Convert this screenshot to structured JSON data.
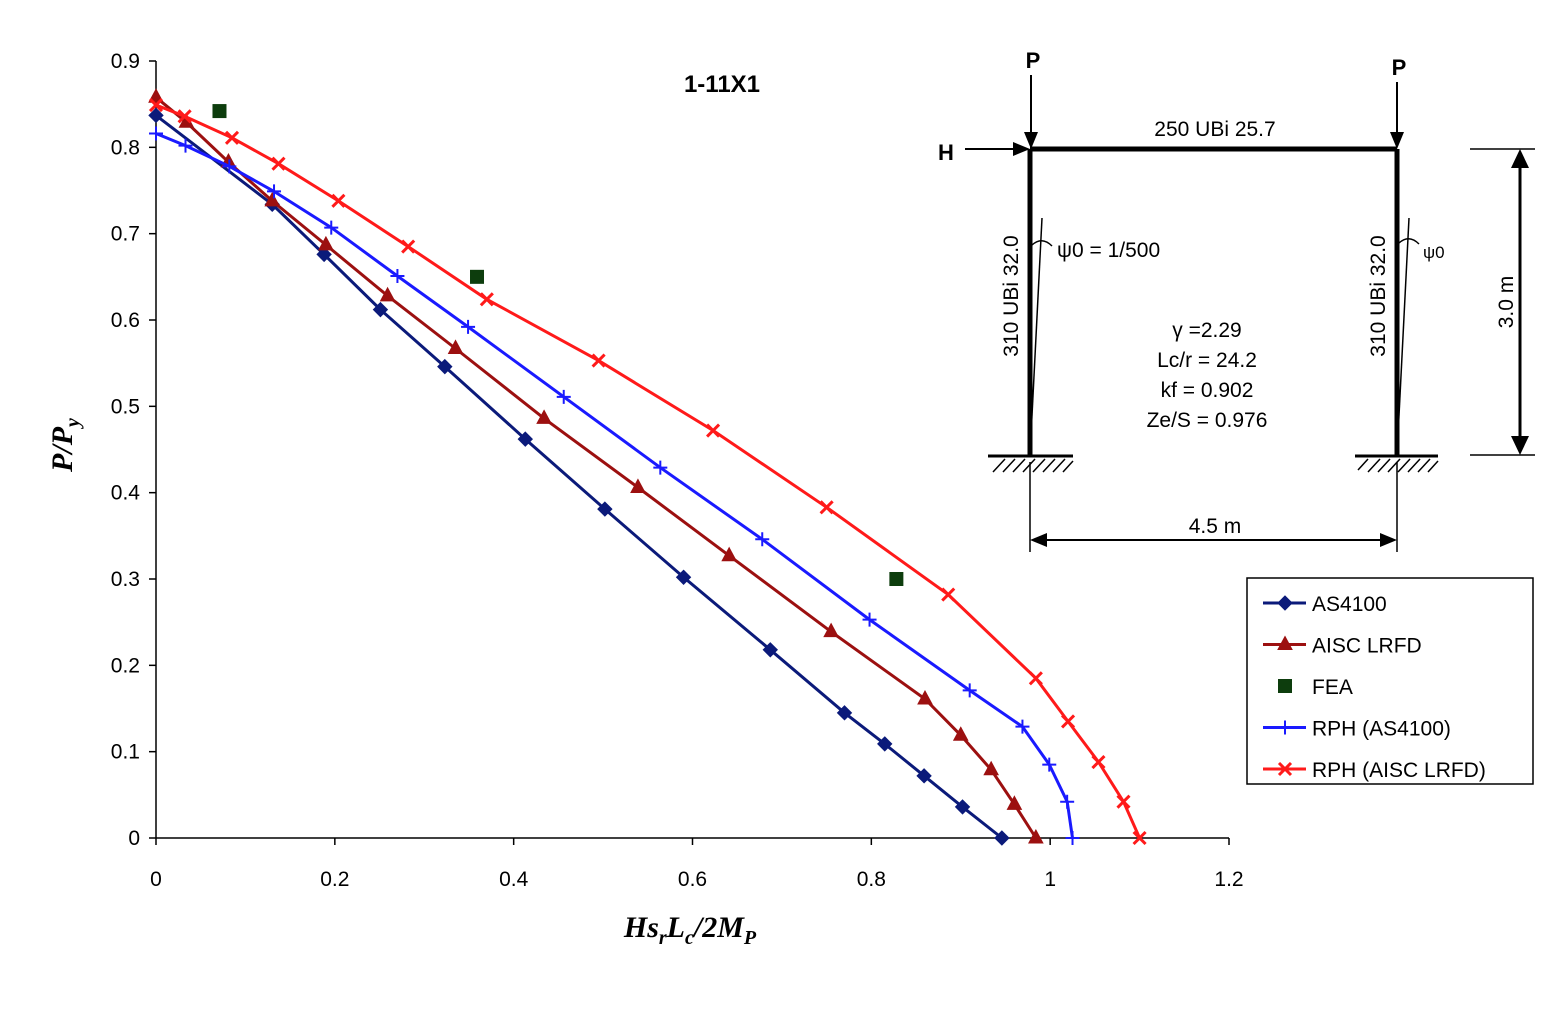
{
  "chart_data": {
    "type": "line",
    "title": "1-11X1",
    "xlabel": "HsrLc/2Mp",
    "ylabel": "P/Py",
    "xlim": [
      0,
      1.2
    ],
    "ylim": [
      0,
      0.9
    ],
    "x_ticks": [
      "0",
      "0.2",
      "0.4",
      "0.6",
      "0.8",
      "1",
      "1.2"
    ],
    "y_ticks": [
      "0",
      "0.1",
      "0.2",
      "0.3",
      "0.4",
      "0.5",
      "0.6",
      "0.7",
      "0.8",
      "0.9"
    ],
    "grid": false,
    "legend_position": "right",
    "series": [
      {
        "name": "AS4100",
        "color": "#0b1a7a",
        "marker": "diamond",
        "line": true,
        "points": [
          [
            0.0,
            0.837
          ],
          [
            0.13,
            0.734
          ],
          [
            0.188,
            0.676
          ],
          [
            0.251,
            0.612
          ],
          [
            0.323,
            0.546
          ],
          [
            0.413,
            0.462
          ],
          [
            0.502,
            0.381
          ],
          [
            0.59,
            0.302
          ],
          [
            0.687,
            0.218
          ],
          [
            0.77,
            0.145
          ],
          [
            0.815,
            0.109
          ],
          [
            0.859,
            0.072
          ],
          [
            0.902,
            0.036
          ],
          [
            0.946,
            0.0
          ]
        ]
      },
      {
        "name": "AISC LRFD",
        "color": "#9c1010",
        "marker": "triangle",
        "line": true,
        "points": [
          [
            0.0,
            0.858
          ],
          [
            0.034,
            0.829
          ],
          [
            0.081,
            0.783
          ],
          [
            0.13,
            0.738
          ],
          [
            0.19,
            0.687
          ],
          [
            0.259,
            0.628
          ],
          [
            0.335,
            0.567
          ],
          [
            0.434,
            0.486
          ],
          [
            0.539,
            0.406
          ],
          [
            0.641,
            0.327
          ],
          [
            0.755,
            0.239
          ],
          [
            0.86,
            0.161
          ],
          [
            0.9,
            0.119
          ],
          [
            0.934,
            0.079
          ],
          [
            0.96,
            0.039
          ],
          [
            0.984,
            0.0
          ]
        ]
      },
      {
        "name": "FEA",
        "color": "#0d3d0d",
        "marker": "square",
        "line": false,
        "points": [
          [
            0.071,
            0.842
          ],
          [
            0.359,
            0.65
          ],
          [
            0.828,
            0.3
          ]
        ]
      },
      {
        "name": "RPH (AS4100)",
        "color": "#1a1aff",
        "marker": "plus",
        "line": true,
        "points": [
          [
            0.0,
            0.816
          ],
          [
            0.033,
            0.802
          ],
          [
            0.082,
            0.778
          ],
          [
            0.132,
            0.749
          ],
          [
            0.196,
            0.707
          ],
          [
            0.27,
            0.651
          ],
          [
            0.349,
            0.592
          ],
          [
            0.456,
            0.511
          ],
          [
            0.564,
            0.429
          ],
          [
            0.678,
            0.346
          ],
          [
            0.798,
            0.253
          ],
          [
            0.91,
            0.171
          ],
          [
            0.969,
            0.129
          ],
          [
            0.999,
            0.085
          ],
          [
            1.019,
            0.042
          ],
          [
            1.025,
            0.0
          ]
        ]
      },
      {
        "name": "RPH (AISC LRFD)",
        "color": "#ff1a1a",
        "marker": "x",
        "line": true,
        "points": [
          [
            0.0,
            0.849
          ],
          [
            0.032,
            0.836
          ],
          [
            0.085,
            0.811
          ],
          [
            0.137,
            0.781
          ],
          [
            0.204,
            0.738
          ],
          [
            0.282,
            0.685
          ],
          [
            0.37,
            0.624
          ],
          [
            0.495,
            0.553
          ],
          [
            0.623,
            0.472
          ],
          [
            0.75,
            0.383
          ],
          [
            0.886,
            0.282
          ],
          [
            0.984,
            0.185
          ],
          [
            1.02,
            0.135
          ],
          [
            1.054,
            0.088
          ],
          [
            1.082,
            0.042
          ],
          [
            1.1,
            0.0
          ]
        ]
      }
    ]
  },
  "diagram": {
    "load_left": "P",
    "load_right": "P",
    "horizontal_load": "H",
    "beam_label": "250 UBi 25.7",
    "left_column_label": "310 UBi 32.0",
    "right_column_label": "310 UBi 32.0",
    "psi_left": "ψ0 = 1/500",
    "psi_right": "ψ0",
    "height_label": "3.0 m",
    "span_label": "4.5 m",
    "gamma": "γ =2.29",
    "lc_r": "Lc/r = 24.2",
    "kf": "kf = 0.902",
    "ze_s": "Ze/S = 0.976"
  }
}
